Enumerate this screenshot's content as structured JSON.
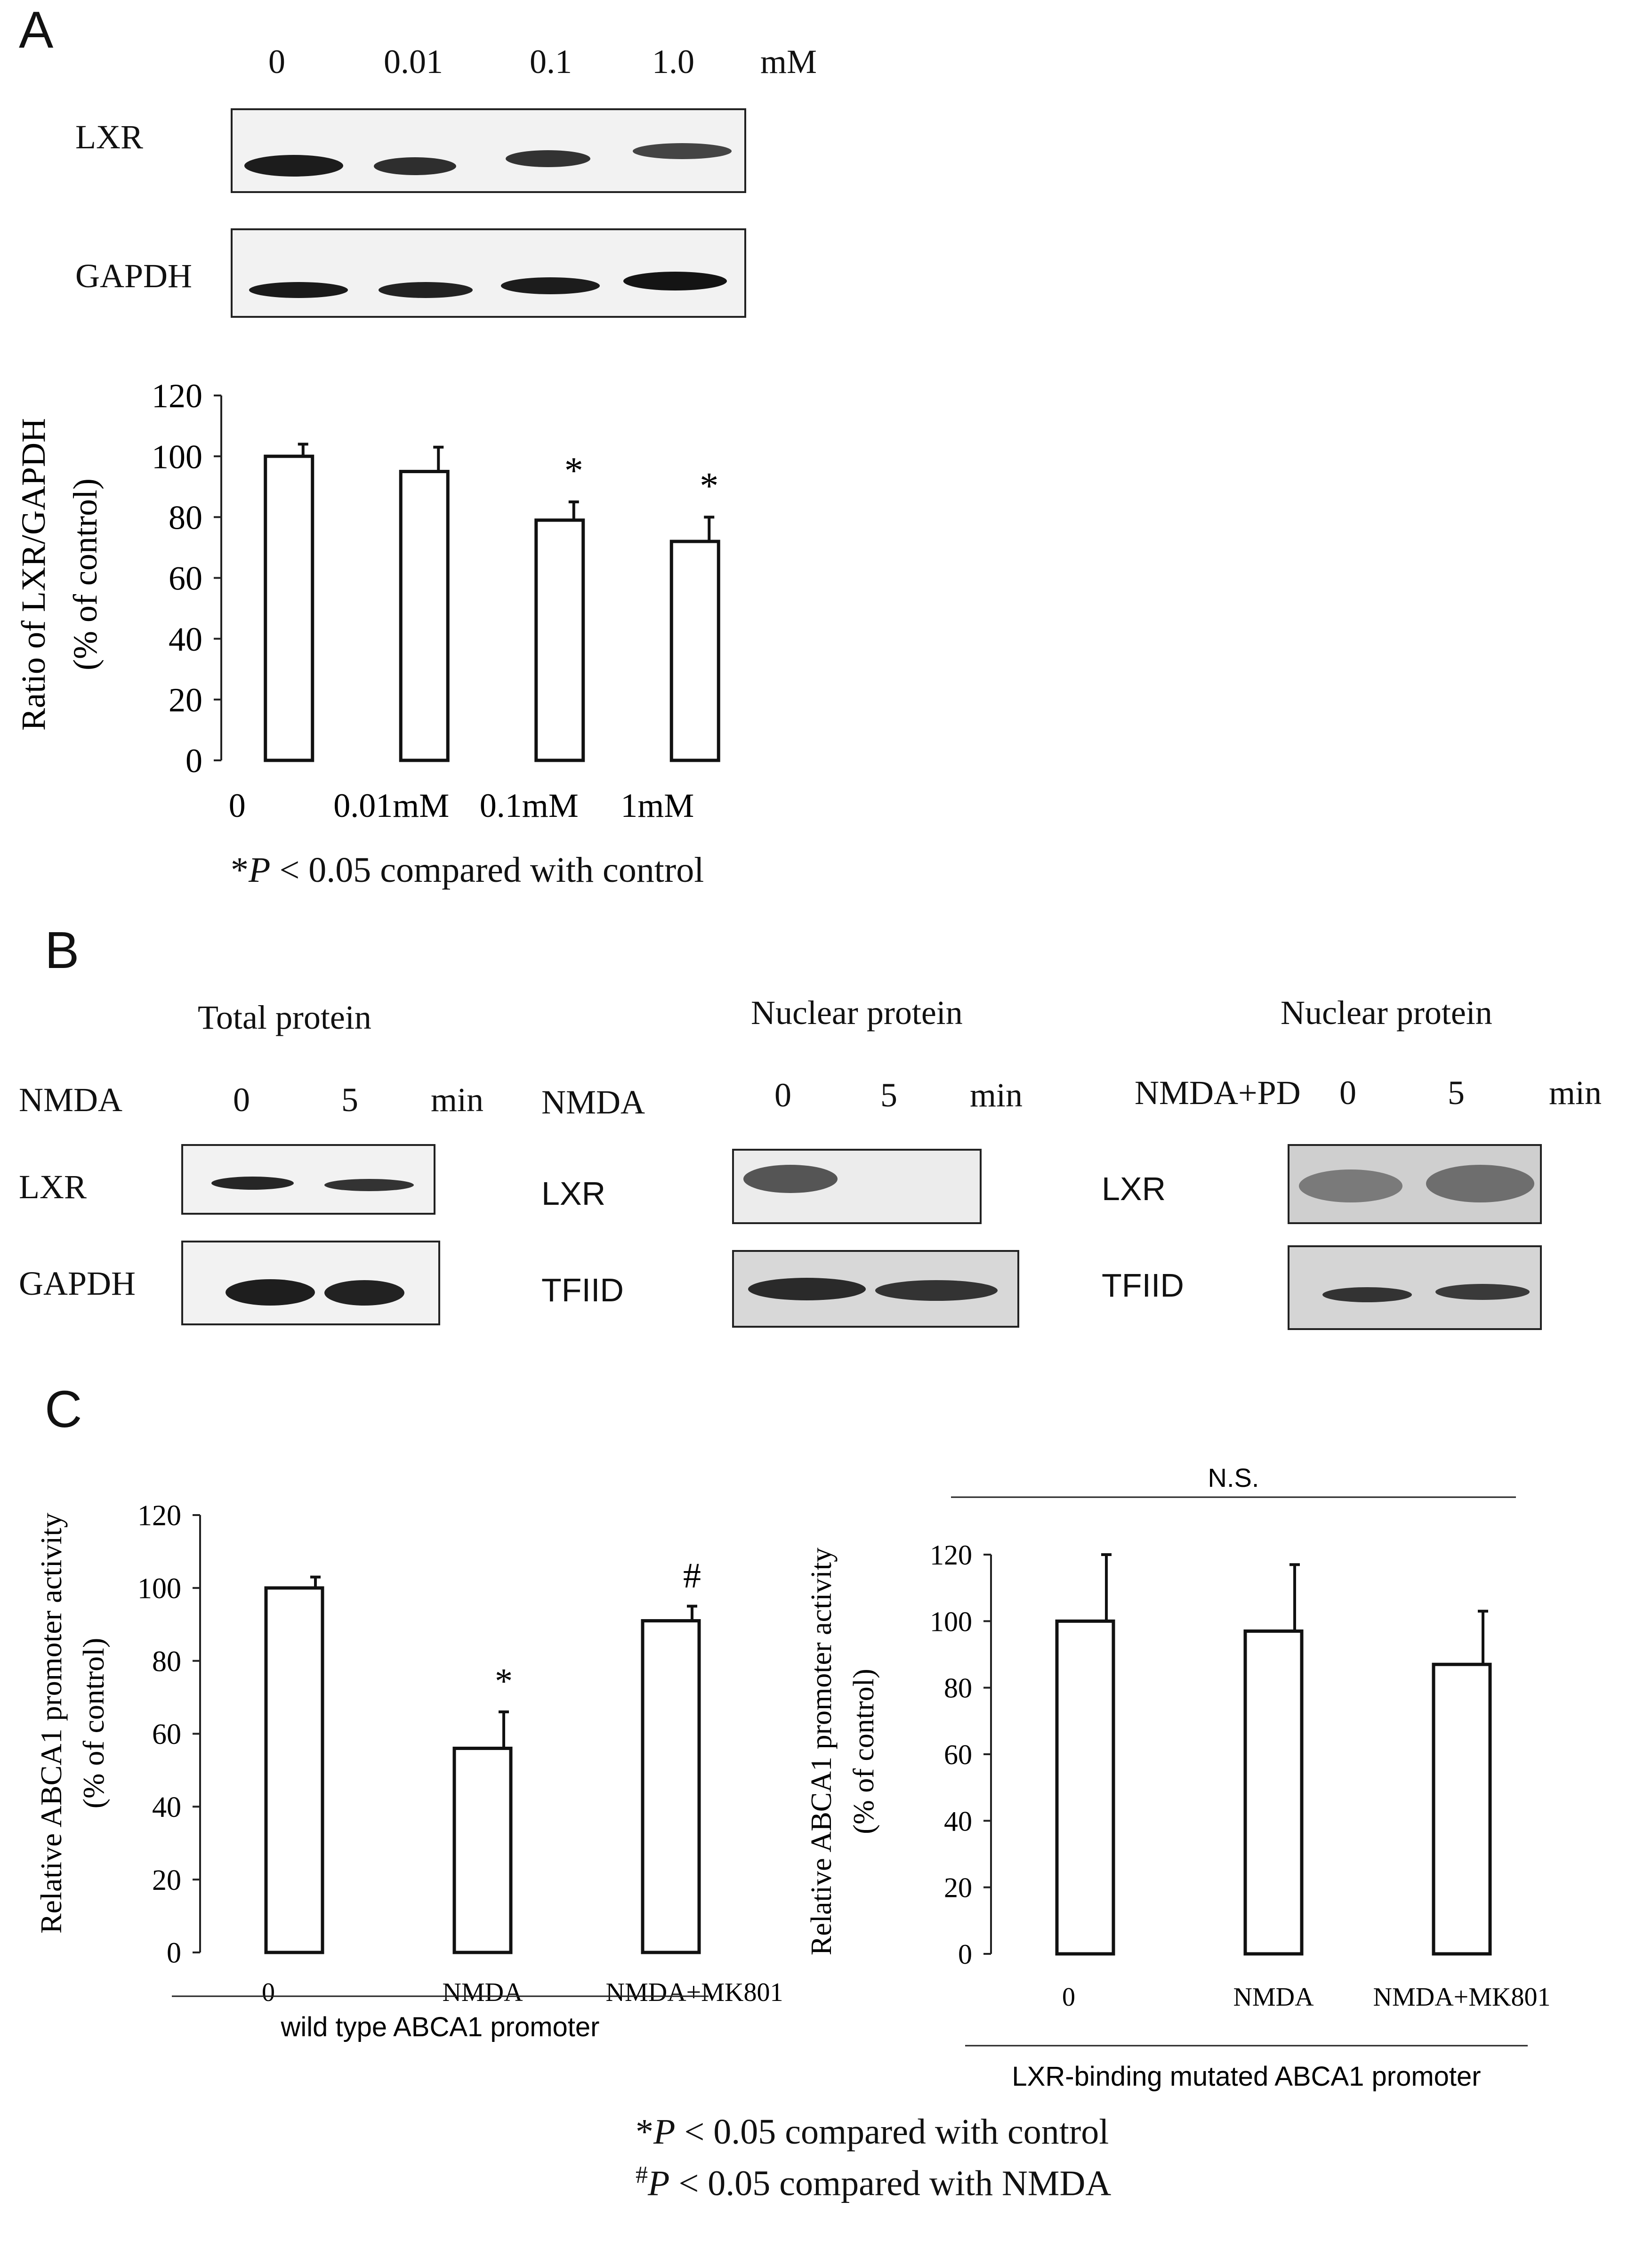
{
  "panel_a": {
    "letter": "A",
    "conc_labels": [
      "0",
      "0.01",
      "0.1",
      "1.0"
    ],
    "conc_unit": "mM",
    "blot_labels": [
      "LXR",
      "GAPDH"
    ],
    "footnote_sym": "*",
    "footnote_p": "P",
    "footnote_rest": " < 0.05 compared with  control"
  },
  "panel_b": {
    "letter": "B",
    "groups": [
      {
        "title": "Total protein",
        "treatment": "NMDA",
        "times": [
          "0",
          "5"
        ],
        "unit": "min",
        "blots": [
          "LXR",
          "GAPDH"
        ]
      },
      {
        "title": "Nuclear protein",
        "treatment": "NMDA",
        "times": [
          "0",
          "5"
        ],
        "unit": "min",
        "blots": [
          "LXR",
          "TFIID"
        ]
      },
      {
        "title": "Nuclear protein",
        "treatment": "NMDA+PD",
        "times": [
          "0",
          "5"
        ],
        "unit": "min",
        "blots": [
          "LXR",
          "TFIID"
        ]
      }
    ]
  },
  "panel_c": {
    "letter": "C",
    "footnote1_sym": "*",
    "footnote1_p": "P",
    "footnote1_rest": " < 0.05 compared with  control",
    "footnote2_sym": "#",
    "footnote2_p": "P",
    "footnote2_rest": " < 0.05 compared with NMDA"
  },
  "chart_data": [
    {
      "type": "bar",
      "id": "A",
      "categories": [
        "0",
        "0.01mM",
        "0.1mM",
        "1mM"
      ],
      "values": [
        100,
        95,
        79,
        72
      ],
      "errors": [
        4,
        8,
        6,
        8
      ],
      "annotations": [
        "",
        "",
        "*",
        "*"
      ],
      "ylabel": "Ratio of LXR/GAPDH",
      "ylabel2": "(% of control)",
      "ylim": [
        0,
        120
      ],
      "yticks": [
        0,
        20,
        40,
        60,
        80,
        100,
        120
      ],
      "xlabel": ""
    },
    {
      "type": "bar",
      "id": "C-left",
      "categories": [
        "0",
        "NMDA",
        "NMDA+MK801"
      ],
      "values": [
        100,
        56,
        91
      ],
      "errors": [
        3,
        10,
        4
      ],
      "annotations": [
        "",
        "*",
        "#"
      ],
      "ylabel": "Relative ABCA1 promoter activity",
      "ylabel2": "(% of control)",
      "ylim": [
        0,
        120
      ],
      "yticks": [
        0,
        20,
        40,
        60,
        80,
        100,
        120
      ],
      "xlabel": "wild type ABCA1 promoter"
    },
    {
      "type": "bar",
      "id": "C-right",
      "categories": [
        "0",
        "NMDA",
        "NMDA+MK801"
      ],
      "values": [
        100,
        97,
        87
      ],
      "errors": [
        20,
        20,
        16
      ],
      "annotations": [
        "",
        "",
        ""
      ],
      "ylabel": "Relative ABCA1 promoter activity",
      "ylabel2": "(% of control)",
      "ylim": [
        0,
        120
      ],
      "yticks": [
        0,
        20,
        40,
        60,
        80,
        100,
        120
      ],
      "xlabel": "LXR-binding mutated ABCA1 promoter",
      "top_label": "N.S."
    }
  ]
}
